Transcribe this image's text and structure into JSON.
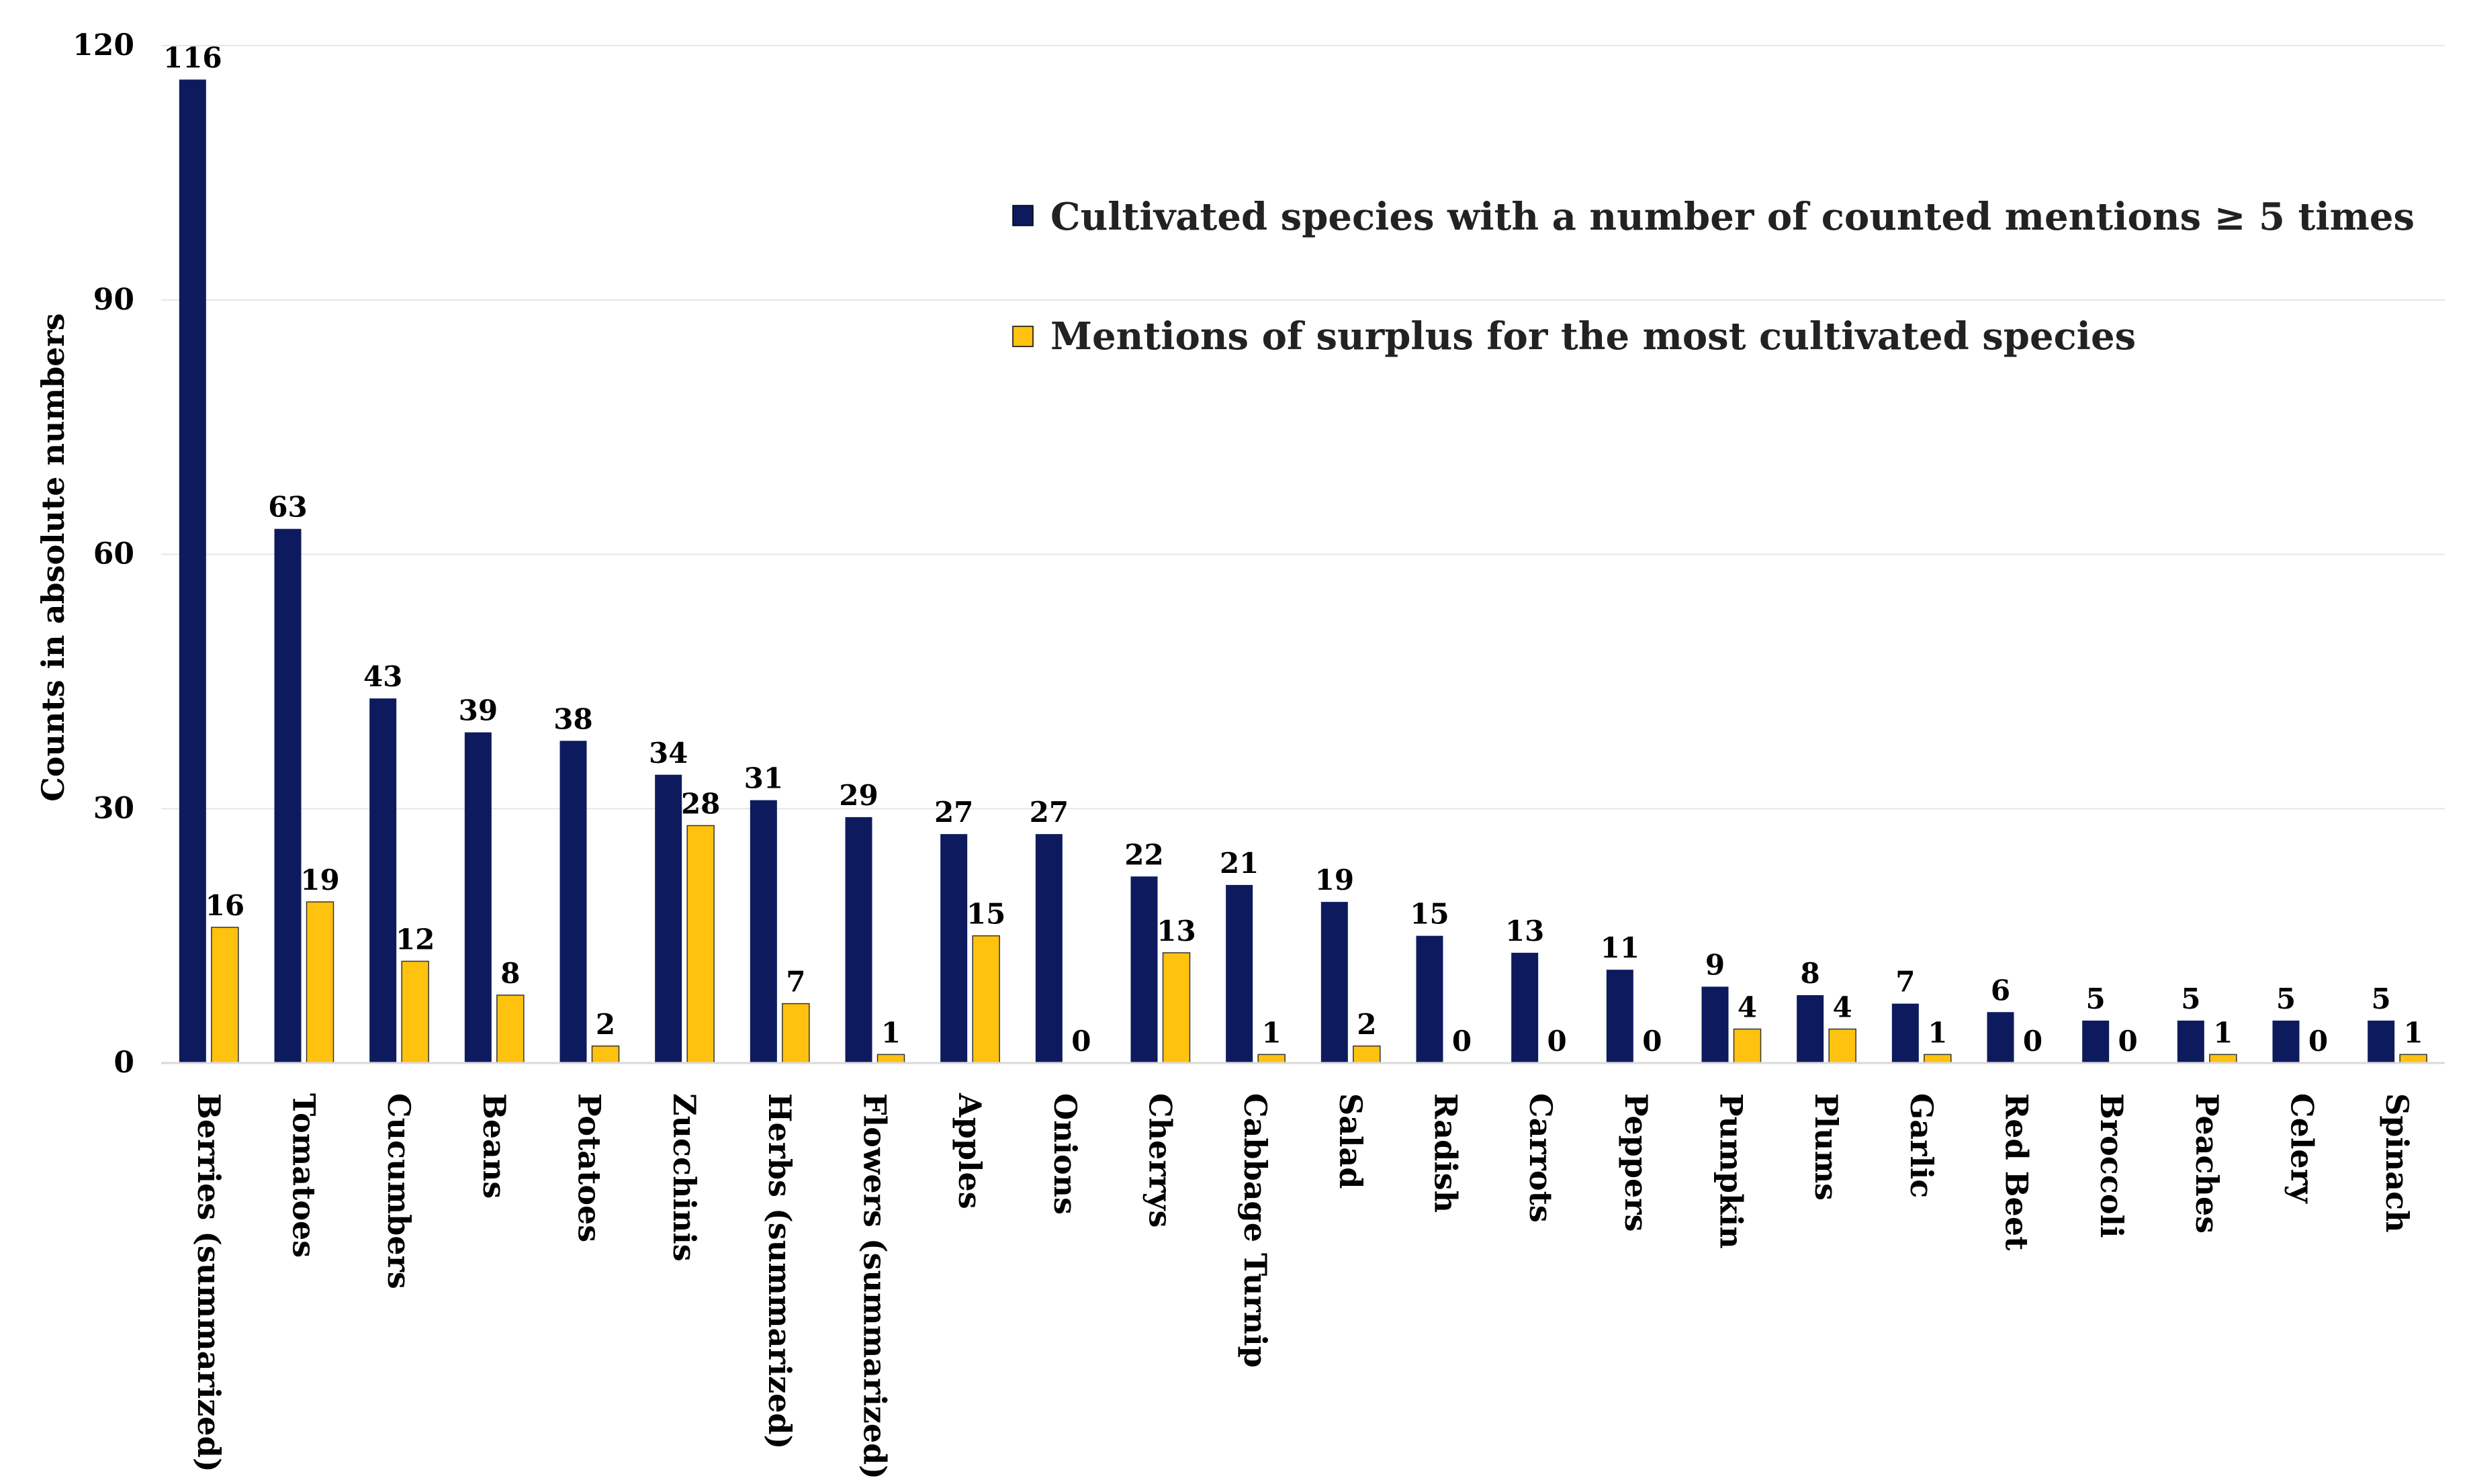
{
  "chart_data": {
    "type": "bar",
    "ylabel": "Counts in absolute numbers",
    "ylim": [
      0,
      120
    ],
    "yticks": [
      0,
      30,
      60,
      90,
      120
    ],
    "grid": true,
    "legend_position": "top-right",
    "categories": [
      "Berries (summarized)",
      "Tomatoes",
      "Cucumbers",
      "Beans",
      "Potatoes",
      "Zucchinis",
      "Herbs (summarized)",
      "Flowers (summarized)",
      "Apples",
      "Onions",
      "Cherrys",
      "Cabbage Turnip",
      "Salad",
      "Radish",
      "Carrots",
      "Peppers",
      "Pumpkin",
      "Plums",
      "Garlic",
      "Red Beet",
      "Broccoli",
      "Peaches",
      "Celery",
      "Spinach"
    ],
    "series": [
      {
        "name": "Cultivated species with a number of counted mentions ≥ 5 times",
        "color": "#0d1b5e",
        "values": [
          116,
          63,
          43,
          39,
          38,
          34,
          31,
          29,
          27,
          27,
          22,
          21,
          19,
          15,
          13,
          11,
          9,
          8,
          7,
          6,
          5,
          5,
          5,
          5
        ]
      },
      {
        "name": "Mentions of surplus for the most cultivated species",
        "color": "#ffc20e",
        "values": [
          16,
          19,
          12,
          8,
          2,
          28,
          7,
          1,
          15,
          0,
          13,
          1,
          2,
          0,
          0,
          0,
          4,
          4,
          1,
          0,
          0,
          1,
          0,
          1
        ]
      }
    ]
  }
}
